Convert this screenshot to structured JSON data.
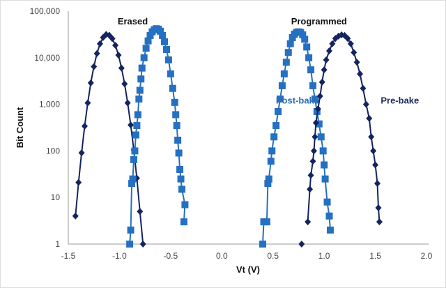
{
  "chart_data": {
    "type": "line",
    "title": "",
    "xlabel": "Vt (V)",
    "ylabel": "Bit Count",
    "xlim": [
      -1.5,
      2.0
    ],
    "ylim": [
      1,
      100000
    ],
    "yscale": "log",
    "grid": false,
    "x_ticks": [
      "-1.5",
      "-1.0",
      "-0.5",
      "0.0",
      "0.5",
      "1.0",
      "1.5",
      "2.0"
    ],
    "x_tick_values": [
      -1.5,
      -1.0,
      -0.5,
      0.0,
      0.5,
      1.0,
      1.5,
      2.0
    ],
    "y_ticks": [
      "1",
      "10",
      "100",
      "1,000",
      "10,000",
      "100,000"
    ],
    "y_tick_values": [
      1,
      10,
      100,
      1000,
      10000,
      100000
    ],
    "annotations": [
      {
        "text": "Erased",
        "x": -0.87,
        "y": 60000,
        "color": "#111111"
      },
      {
        "text": "Programmed",
        "x": 0.95,
        "y": 60000,
        "color": "#111111"
      },
      {
        "text": "Post-bake",
        "x": 0.74,
        "y": 1200,
        "color": "#2a6fb6"
      },
      {
        "text": "Pre-bake",
        "x": 1.74,
        "y": 1200,
        "color": "#1f2d5c"
      }
    ],
    "series": [
      {
        "name": "Erased Pre-bake",
        "marker": "diamond",
        "color": "#14245e",
        "x": [
          -1.43,
          -1.4,
          -1.37,
          -1.34,
          -1.31,
          -1.28,
          -1.25,
          -1.22,
          -1.19,
          -1.16,
          -1.13,
          -1.1,
          -1.07,
          -1.04,
          -1.01,
          -0.98,
          -0.95,
          -0.92,
          -0.89,
          -0.86,
          -0.83,
          -0.8,
          -0.77
        ],
        "y": [
          4,
          21,
          91,
          340,
          1070,
          2880,
          6460,
          12300,
          20000,
          27200,
          31600,
          30500,
          25700,
          18500,
          11400,
          6000,
          2750,
          1070,
          360,
          105,
          26,
          5,
          1
        ]
      },
      {
        "name": "Erased Post-bake",
        "marker": "square",
        "color": "#2570c0",
        "x": [
          -0.9,
          -0.89,
          -0.88,
          -0.87,
          -0.86,
          -0.85,
          -0.84,
          -0.83,
          -0.82,
          -0.81,
          -0.8,
          -0.79,
          -0.78,
          -0.76,
          -0.74,
          -0.72,
          -0.7,
          -0.68,
          -0.66,
          -0.64,
          -0.62,
          -0.6,
          -0.58,
          -0.56,
          -0.54,
          -0.52,
          -0.5,
          -0.48,
          -0.46,
          -0.45,
          -0.44,
          -0.43,
          -0.42,
          -0.41,
          -0.4,
          -0.39,
          -0.36,
          -0.37
        ],
        "y": [
          1,
          2,
          20,
          25,
          65,
          100,
          220,
          350,
          600,
          1300,
          2000,
          3500,
          6000,
          10000,
          16000,
          23000,
          30000,
          36000,
          40000,
          42000,
          41000,
          37000,
          30000,
          22000,
          15000,
          9000,
          4500,
          2200,
          1100,
          600,
          350,
          170,
          90,
          40,
          25,
          15,
          7,
          3
        ]
      },
      {
        "name": "Programmed Post-bake",
        "marker": "square",
        "color": "#2570c0",
        "x": [
          0.4,
          0.41,
          0.44,
          0.45,
          0.46,
          0.48,
          0.49,
          0.51,
          0.53,
          0.55,
          0.57,
          0.59,
          0.61,
          0.63,
          0.65,
          0.67,
          0.69,
          0.71,
          0.73,
          0.75,
          0.77,
          0.79,
          0.81,
          0.83,
          0.85,
          0.87,
          0.89,
          0.91,
          0.93,
          0.95,
          0.97,
          0.99,
          1.0,
          1.01,
          1.03,
          1.05,
          1.06
        ],
        "y": [
          1,
          3,
          3,
          20,
          25,
          60,
          100,
          200,
          350,
          700,
          1300,
          2500,
          4500,
          8000,
          13000,
          20000,
          27000,
          32000,
          35000,
          36000,
          35000,
          31000,
          25000,
          17000,
          10000,
          5500,
          2500,
          1300,
          700,
          380,
          200,
          100,
          50,
          25,
          8,
          4,
          2
        ]
      },
      {
        "name": "Programmed Pre-bake",
        "marker": "diamond",
        "color": "#14245e",
        "x": [
          0.84,
          0.86,
          0.87,
          0.89,
          0.9,
          0.91,
          0.92,
          0.94,
          0.96,
          0.98,
          1.0,
          1.02,
          1.05,
          1.08,
          1.11,
          1.14,
          1.17,
          1.2,
          1.23,
          1.26,
          1.29,
          1.32,
          1.35,
          1.38,
          1.41,
          1.44,
          1.46,
          1.48,
          1.5,
          1.52,
          1.53,
          1.54
        ],
        "y": [
          3,
          15,
          30,
          60,
          100,
          200,
          400,
          800,
          1500,
          3000,
          5500,
          9000,
          14000,
          20000,
          26000,
          29000,
          31000,
          30000,
          26000,
          20000,
          13000,
          8000,
          4500,
          2200,
          1000,
          500,
          200,
          100,
          50,
          20,
          6,
          3
        ],
        "isolated_points": [
          {
            "x": 0.78,
            "y": 1
          }
        ]
      }
    ]
  }
}
